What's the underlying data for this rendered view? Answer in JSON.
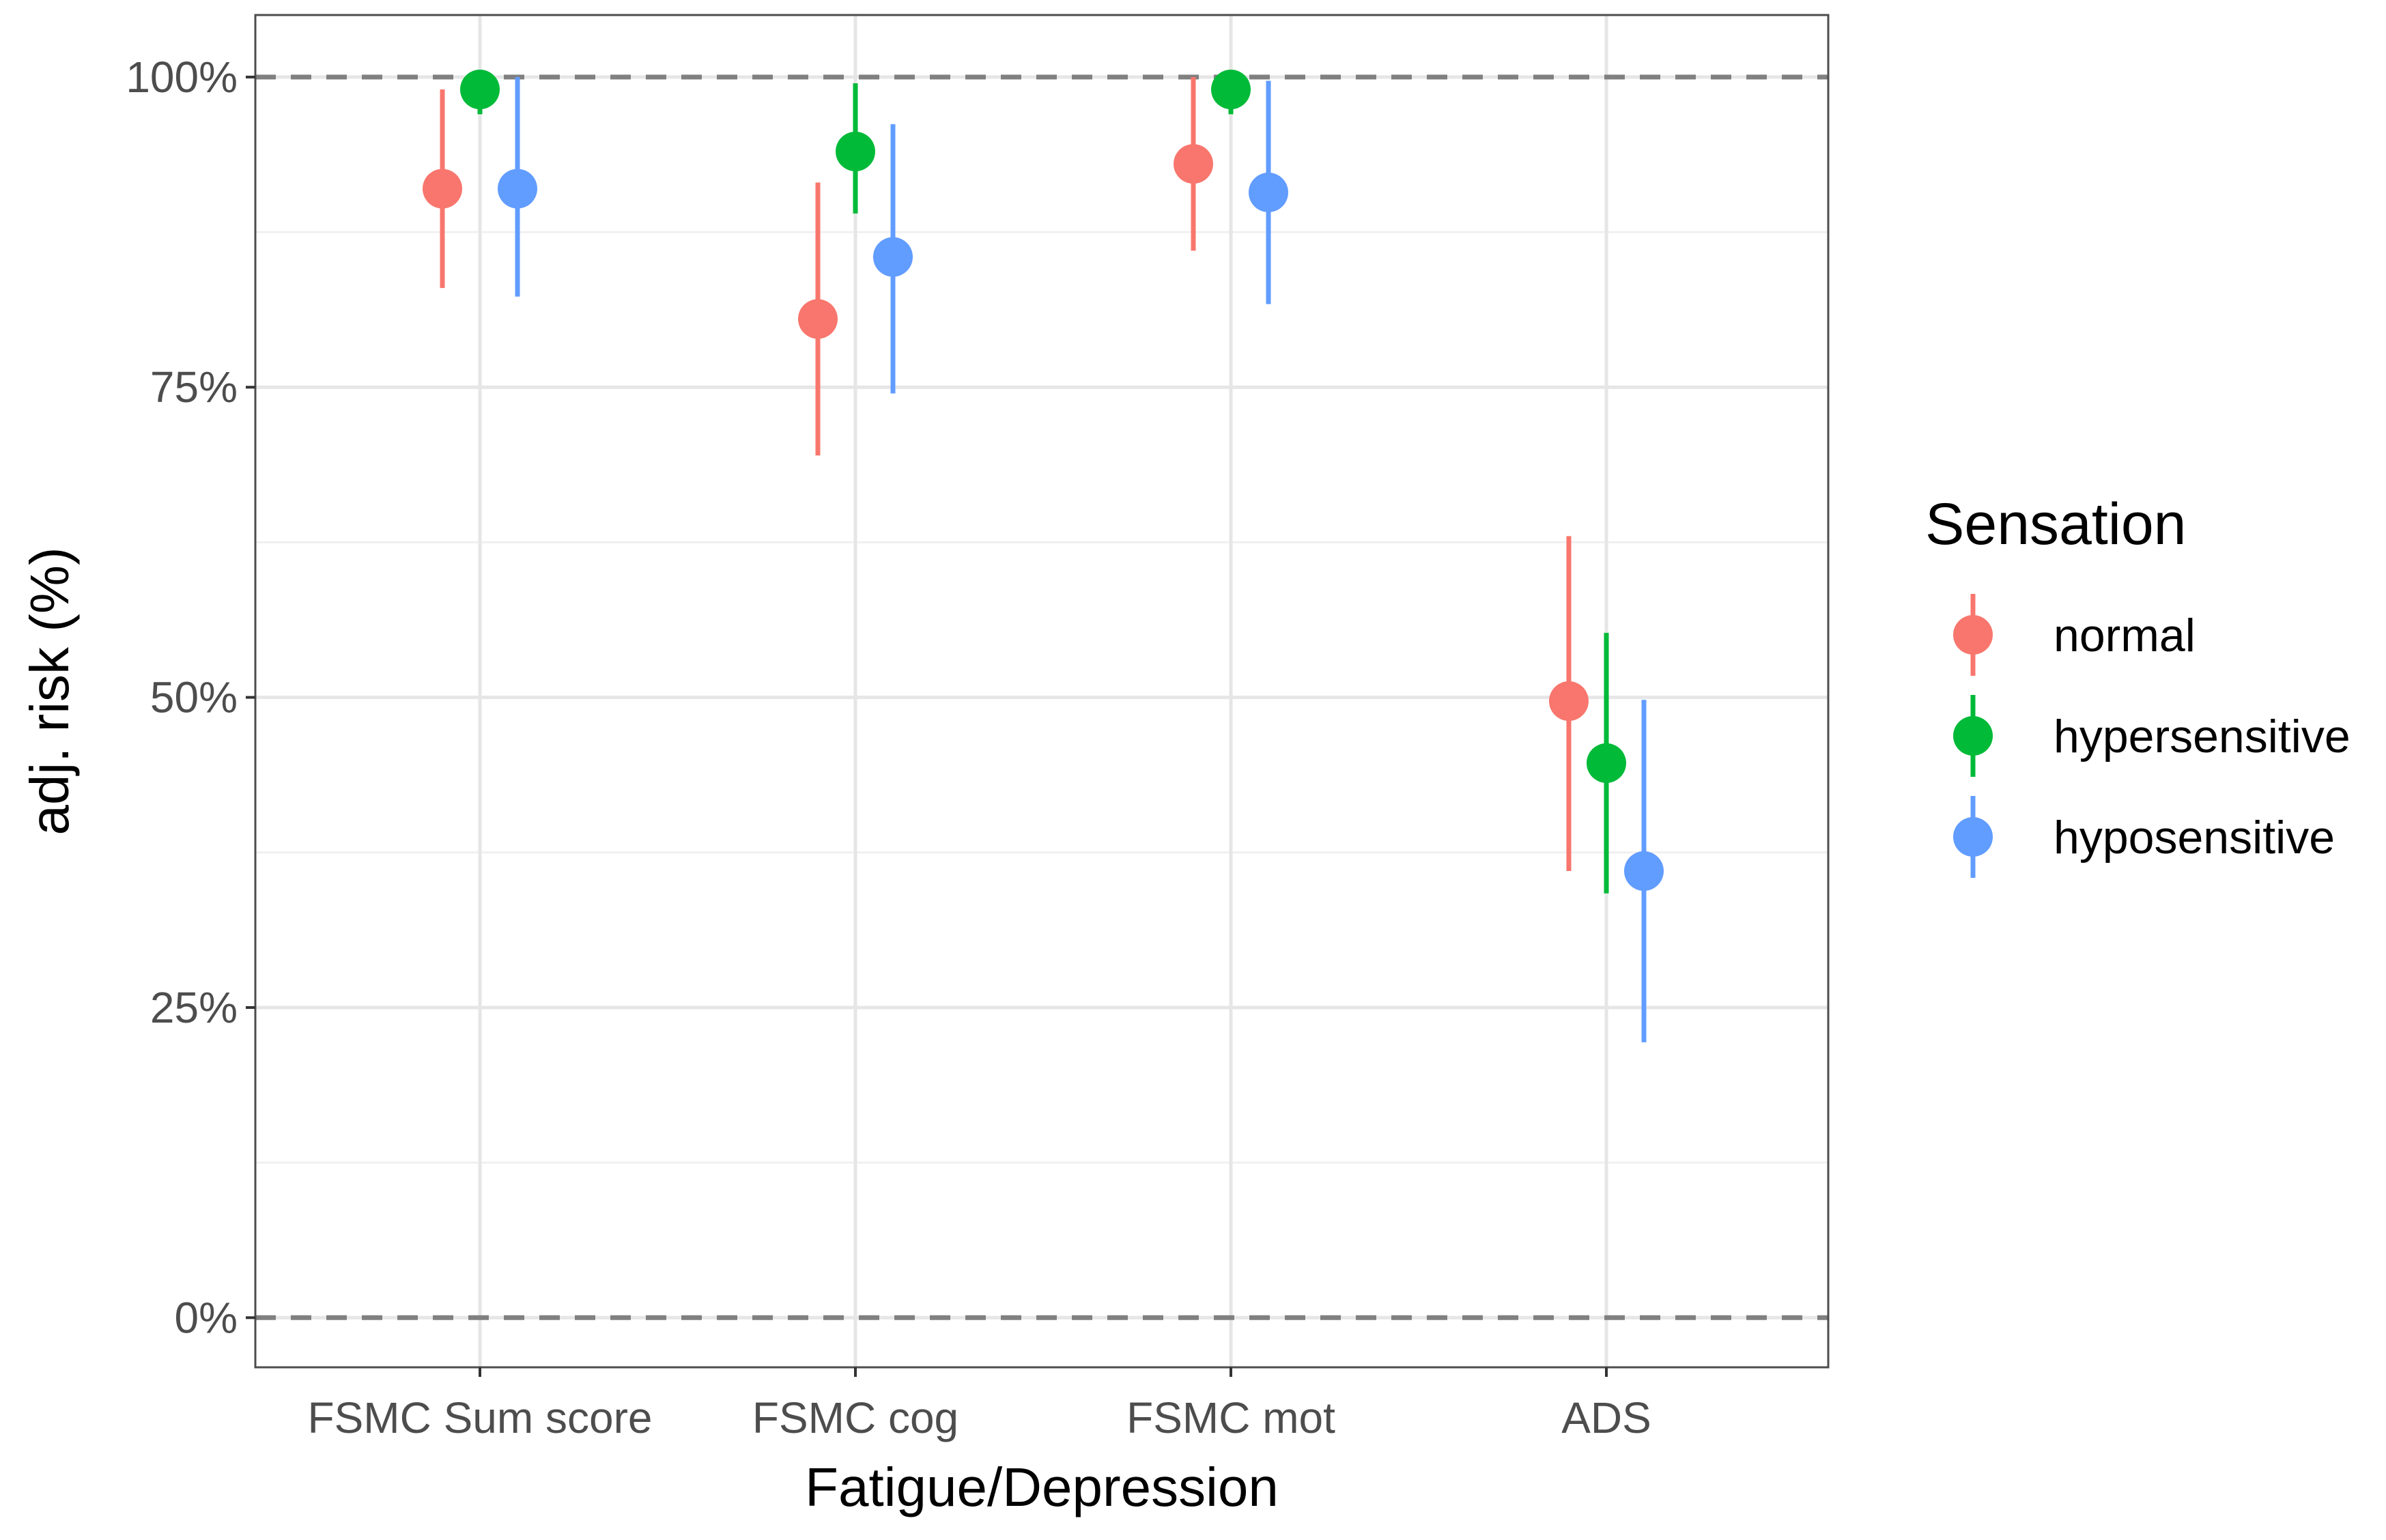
{
  "chart_data": {
    "type": "scatter",
    "subtype": "point-range",
    "xlabel": "Fatigue/Depression",
    "ylabel": "adj. risk (%)",
    "categories": [
      "FSMC Sum score",
      "FSMC cog",
      "FSMC mot",
      "ADS"
    ],
    "ylim": [
      -0.04,
      1.05
    ],
    "yticks": [
      0,
      0.25,
      0.5,
      0.75,
      1.0
    ],
    "ytick_labels": [
      "0%",
      "25%",
      "50%",
      "75%",
      "100%"
    ],
    "reference_lines": [
      0,
      1.0
    ],
    "grid": true,
    "legend": {
      "title": "Sensation",
      "placement": "right"
    },
    "series": [
      {
        "name": "normal",
        "color": "#F8766D",
        "values": [
          0.91,
          0.805,
          0.93,
          0.497
        ],
        "lower": [
          0.83,
          0.695,
          0.86,
          0.36
        ],
        "upper": [
          0.99,
          0.915,
          1.0,
          0.63
        ]
      },
      {
        "name": "hypersensitive",
        "color": "#00BA38",
        "values": [
          0.99,
          0.94,
          0.99,
          0.447
        ],
        "lower": [
          0.97,
          0.89,
          0.97,
          0.342
        ],
        "upper": [
          1.0,
          0.995,
          1.0,
          0.552
        ]
      },
      {
        "name": "hyposensitive",
        "color": "#619CFF",
        "values": [
          0.91,
          0.855,
          0.907,
          0.36
        ],
        "lower": [
          0.823,
          0.745,
          0.817,
          0.222
        ],
        "upper": [
          1.0,
          0.962,
          0.997,
          0.498
        ]
      }
    ]
  }
}
